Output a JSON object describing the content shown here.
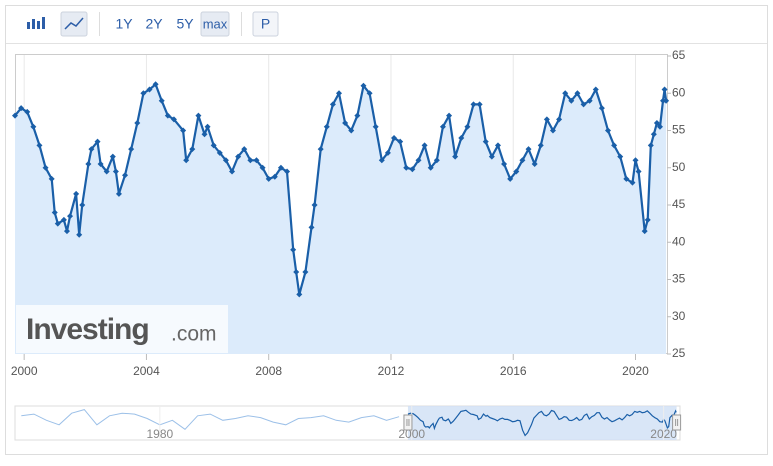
{
  "toolbar": {
    "buttons": [
      "1Y",
      "2Y",
      "5Y",
      "max",
      "P"
    ]
  },
  "watermark": {
    "brand": "Investing",
    "suffix": ".com"
  },
  "chart_data": {
    "type": "area",
    "color": "#1a5fa8",
    "fill": "#dcebfb",
    "grid": "x",
    "xlim": [
      1999.7,
      2021.03
    ],
    "ylim": [
      25,
      65
    ],
    "xticks": [
      2000,
      2004,
      2008,
      2012,
      2016,
      2020
    ],
    "yticks": [
      25,
      30,
      35,
      40,
      45,
      50,
      55,
      60,
      65
    ],
    "x": [
      1999.7,
      1999.9,
      2000.1,
      2000.3,
      2000.5,
      2000.7,
      2000.9,
      2001.0,
      2001.1,
      2001.3,
      2001.4,
      2001.5,
      2001.7,
      2001.8,
      2001.9,
      2002.1,
      2002.2,
      2002.4,
      2002.5,
      2002.7,
      2002.9,
      2003.0,
      2003.1,
      2003.3,
      2003.5,
      2003.7,
      2003.9,
      2004.1,
      2004.3,
      2004.5,
      2004.7,
      2004.9,
      2005.2,
      2005.3,
      2005.5,
      2005.7,
      2005.9,
      2006.0,
      2006.2,
      2006.4,
      2006.6,
      2006.8,
      2007.0,
      2007.2,
      2007.4,
      2007.6,
      2007.8,
      2008.0,
      2008.2,
      2008.4,
      2008.6,
      2008.8,
      2008.9,
      2009.0,
      2009.2,
      2009.4,
      2009.5,
      2009.7,
      2009.9,
      2010.1,
      2010.3,
      2010.5,
      2010.7,
      2010.9,
      2011.1,
      2011.3,
      2011.5,
      2011.7,
      2011.9,
      2012.1,
      2012.3,
      2012.5,
      2012.7,
      2012.9,
      2013.1,
      2013.3,
      2013.5,
      2013.7,
      2013.9,
      2014.1,
      2014.3,
      2014.5,
      2014.7,
      2014.9,
      2015.1,
      2015.3,
      2015.5,
      2015.7,
      2015.9,
      2016.1,
      2016.3,
      2016.5,
      2016.7,
      2016.9,
      2017.1,
      2017.3,
      2017.5,
      2017.7,
      2017.9,
      2018.1,
      2018.3,
      2018.5,
      2018.7,
      2018.9,
      2019.1,
      2019.3,
      2019.5,
      2019.7,
      2019.9,
      2020.0,
      2020.1,
      2020.3,
      2020.4,
      2020.5,
      2020.6,
      2020.7,
      2020.8,
      2020.9,
      2020.95,
      2021.0
    ],
    "values": [
      57,
      58,
      57.5,
      55.5,
      53,
      50,
      48.5,
      44,
      42.5,
      43,
      41.5,
      43.5,
      46.5,
      41,
      45,
      50.5,
      52.5,
      53.5,
      50.5,
      49.5,
      51.5,
      49.5,
      46.5,
      49,
      52.5,
      56,
      60,
      60.5,
      61.2,
      59,
      57,
      56.5,
      55,
      51,
      52.5,
      57,
      54.5,
      55.5,
      53,
      52,
      51,
      49.5,
      51.5,
      52.5,
      51,
      51,
      50,
      48.5,
      48.8,
      50,
      49.5,
      39,
      36,
      33,
      36,
      42,
      45,
      52.5,
      55.5,
      58.5,
      60,
      56,
      55,
      57,
      61,
      60,
      55.5,
      51,
      52,
      54,
      53.5,
      50,
      49.8,
      51,
      53,
      50,
      51,
      55.5,
      57,
      51.5,
      54,
      55.5,
      58.5,
      58.5,
      53.5,
      51.5,
      53,
      50.5,
      48.5,
      49.5,
      51,
      52.5,
      50.5,
      53,
      56.5,
      55,
      56.5,
      60,
      59,
      60,
      58.5,
      59,
      60.5,
      58,
      55,
      53,
      51.5,
      48.5,
      48,
      51,
      49.5,
      41.5,
      43,
      53,
      54.5,
      56,
      55.5,
      59,
      60.5,
      59
    ],
    "navigator": {
      "xlim": [
        1968.5,
        2021.3
      ],
      "ylim": [
        28,
        66
      ],
      "xticks": [
        1980,
        2000,
        2020
      ],
      "x": [
        1969,
        1970,
        1971,
        1972,
        1973,
        1974,
        1975,
        1976,
        1977,
        1978,
        1979,
        1980,
        1981,
        1982,
        1983,
        1984,
        1985,
        1986,
        1987,
        1988,
        1989,
        1990,
        1991,
        1992,
        1993,
        1994,
        1995,
        1996,
        1997,
        1998,
        1999
      ],
      "values": [
        55,
        57,
        50,
        45,
        58,
        62,
        45,
        55,
        58,
        57,
        52,
        45,
        50,
        40,
        55,
        57,
        50,
        52,
        55,
        53,
        48,
        45,
        52,
        53,
        55,
        50,
        48,
        53,
        55,
        50,
        54
      ]
    }
  }
}
